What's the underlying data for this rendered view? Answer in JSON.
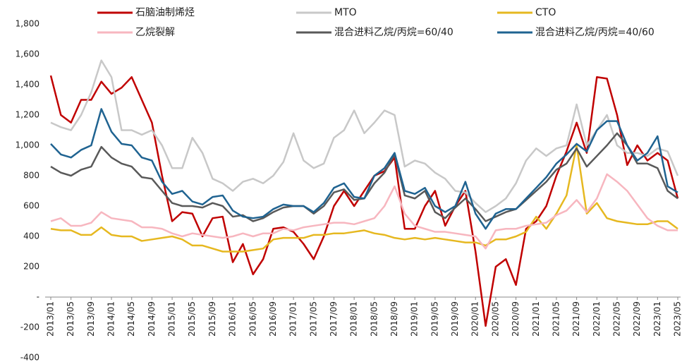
{
  "chart_data": {
    "type": "line",
    "categories": [
      "2013/01",
      null,
      "2013/05",
      null,
      "2013/09",
      null,
      "2014/01",
      null,
      "2014/05",
      null,
      "2014/09",
      null,
      "2015/01",
      null,
      "2015/05",
      null,
      "2015/09",
      null,
      "2016/01",
      null,
      "2016/05",
      null,
      "2016/09",
      null,
      "2017/01",
      null,
      "2017/05",
      null,
      "2017/09",
      null,
      "2018/01",
      null,
      "2018/05",
      null,
      "2018/09",
      null,
      "2019/01",
      null,
      "2019/05",
      null,
      "2019/09",
      null,
      "2020/01",
      null,
      "2020/05",
      null,
      "2020/09",
      null,
      "2021/01",
      null,
      "2021/05",
      null,
      "2021/09",
      null,
      "2022/01",
      null,
      "2022/05",
      null,
      "2022/09",
      null,
      "2023/01",
      null,
      "2023/05"
    ],
    "series": [
      {
        "name": "石脑油制烯烃",
        "color": "#c00000",
        "values": [
          1460,
          1200,
          1150,
          1300,
          1300,
          1420,
          1340,
          1380,
          1450,
          1300,
          1150,
          800,
          500,
          560,
          550,
          400,
          520,
          530,
          230,
          350,
          150,
          250,
          450,
          460,
          430,
          350,
          250,
          400,
          600,
          700,
          600,
          700,
          800,
          830,
          920,
          450,
          450,
          600,
          700,
          470,
          600,
          700,
          300,
          -190,
          200,
          250,
          80,
          450,
          500,
          600,
          800,
          960,
          1150,
          950,
          1450,
          1440,
          1200,
          870,
          1000,
          900,
          950,
          900,
          650
        ]
      },
      {
        "name": "MTO",
        "color": "#c8c8c8",
        "values": [
          1150,
          1120,
          1100,
          1200,
          1350,
          1560,
          1450,
          1100,
          1100,
          1070,
          1100,
          1000,
          850,
          850,
          1050,
          950,
          780,
          750,
          700,
          760,
          780,
          750,
          800,
          890,
          1080,
          900,
          850,
          880,
          1050,
          1100,
          1230,
          1080,
          1150,
          1230,
          1200,
          860,
          900,
          880,
          820,
          780,
          700,
          690,
          620,
          560,
          600,
          650,
          750,
          900,
          980,
          930,
          980,
          1000,
          1270,
          1000,
          1100,
          1200,
          1000,
          950,
          950,
          930,
          980,
          960,
          800
        ]
      },
      {
        "name": "CTO",
        "color": "#e6b820",
        "values": [
          450,
          440,
          440,
          410,
          410,
          460,
          410,
          400,
          400,
          370,
          380,
          390,
          400,
          380,
          340,
          340,
          320,
          300,
          300,
          300,
          310,
          320,
          380,
          390,
          390,
          390,
          410,
          410,
          420,
          420,
          430,
          440,
          420,
          410,
          390,
          380,
          390,
          380,
          390,
          380,
          370,
          360,
          360,
          340,
          380,
          380,
          400,
          430,
          530,
          450,
          550,
          670,
          1000,
          550,
          620,
          520,
          500,
          490,
          480,
          480,
          500,
          500,
          450
        ]
      },
      {
        "name": "乙烷裂解",
        "color": "#f7b6bf",
        "values": [
          500,
          520,
          470,
          470,
          490,
          560,
          520,
          510,
          500,
          460,
          460,
          450,
          420,
          400,
          420,
          410,
          400,
          390,
          400,
          420,
          400,
          420,
          420,
          450,
          440,
          460,
          470,
          480,
          490,
          490,
          480,
          500,
          520,
          600,
          730,
          550,
          470,
          450,
          430,
          430,
          420,
          410,
          400,
          320,
          440,
          450,
          450,
          470,
          480,
          490,
          540,
          570,
          640,
          560,
          650,
          810,
          760,
          700,
          610,
          520,
          470,
          440,
          440
        ]
      },
      {
        "name": "混合进料乙烷/丙烷=60/40",
        "color": "#595959",
        "values": [
          860,
          820,
          800,
          840,
          860,
          990,
          920,
          880,
          860,
          790,
          780,
          700,
          620,
          600,
          600,
          590,
          620,
          600,
          530,
          540,
          500,
          520,
          560,
          590,
          600,
          600,
          550,
          600,
          690,
          710,
          640,
          650,
          750,
          820,
          940,
          670,
          650,
          700,
          560,
          520,
          590,
          650,
          580,
          500,
          530,
          560,
          580,
          640,
          700,
          760,
          840,
          880,
          980,
          860,
          930,
          1000,
          1080,
          1000,
          880,
          880,
          850,
          700,
          650
        ]
      },
      {
        "name": "混合进料乙烷/丙烷=40/60",
        "color": "#1f6391",
        "values": [
          1010,
          940,
          920,
          970,
          1000,
          1240,
          1090,
          1010,
          1000,
          920,
          900,
          760,
          680,
          700,
          630,
          610,
          660,
          670,
          570,
          530,
          520,
          530,
          580,
          610,
          600,
          600,
          560,
          620,
          720,
          750,
          660,
          650,
          800,
          850,
          950,
          700,
          680,
          720,
          600,
          560,
          600,
          760,
          550,
          450,
          550,
          580,
          580,
          650,
          720,
          790,
          880,
          940,
          1010,
          960,
          1100,
          1160,
          1160,
          1000,
          900,
          950,
          1060,
          730,
          690
        ]
      }
    ],
    "ylim": [
      -400,
      1800
    ],
    "yticks": [
      {
        "value": -400,
        "label": "-400"
      },
      {
        "value": -200,
        "label": "-200"
      },
      {
        "value": 0,
        "label": "-"
      },
      200,
      400,
      600,
      800,
      {
        "value": 1000,
        "label": "1,000"
      },
      {
        "value": 1200,
        "label": "1,200"
      },
      {
        "value": 1400,
        "label": "1,400"
      },
      {
        "value": 1600,
        "label": "1,600"
      },
      {
        "value": 1800,
        "label": "1,800"
      }
    ]
  }
}
